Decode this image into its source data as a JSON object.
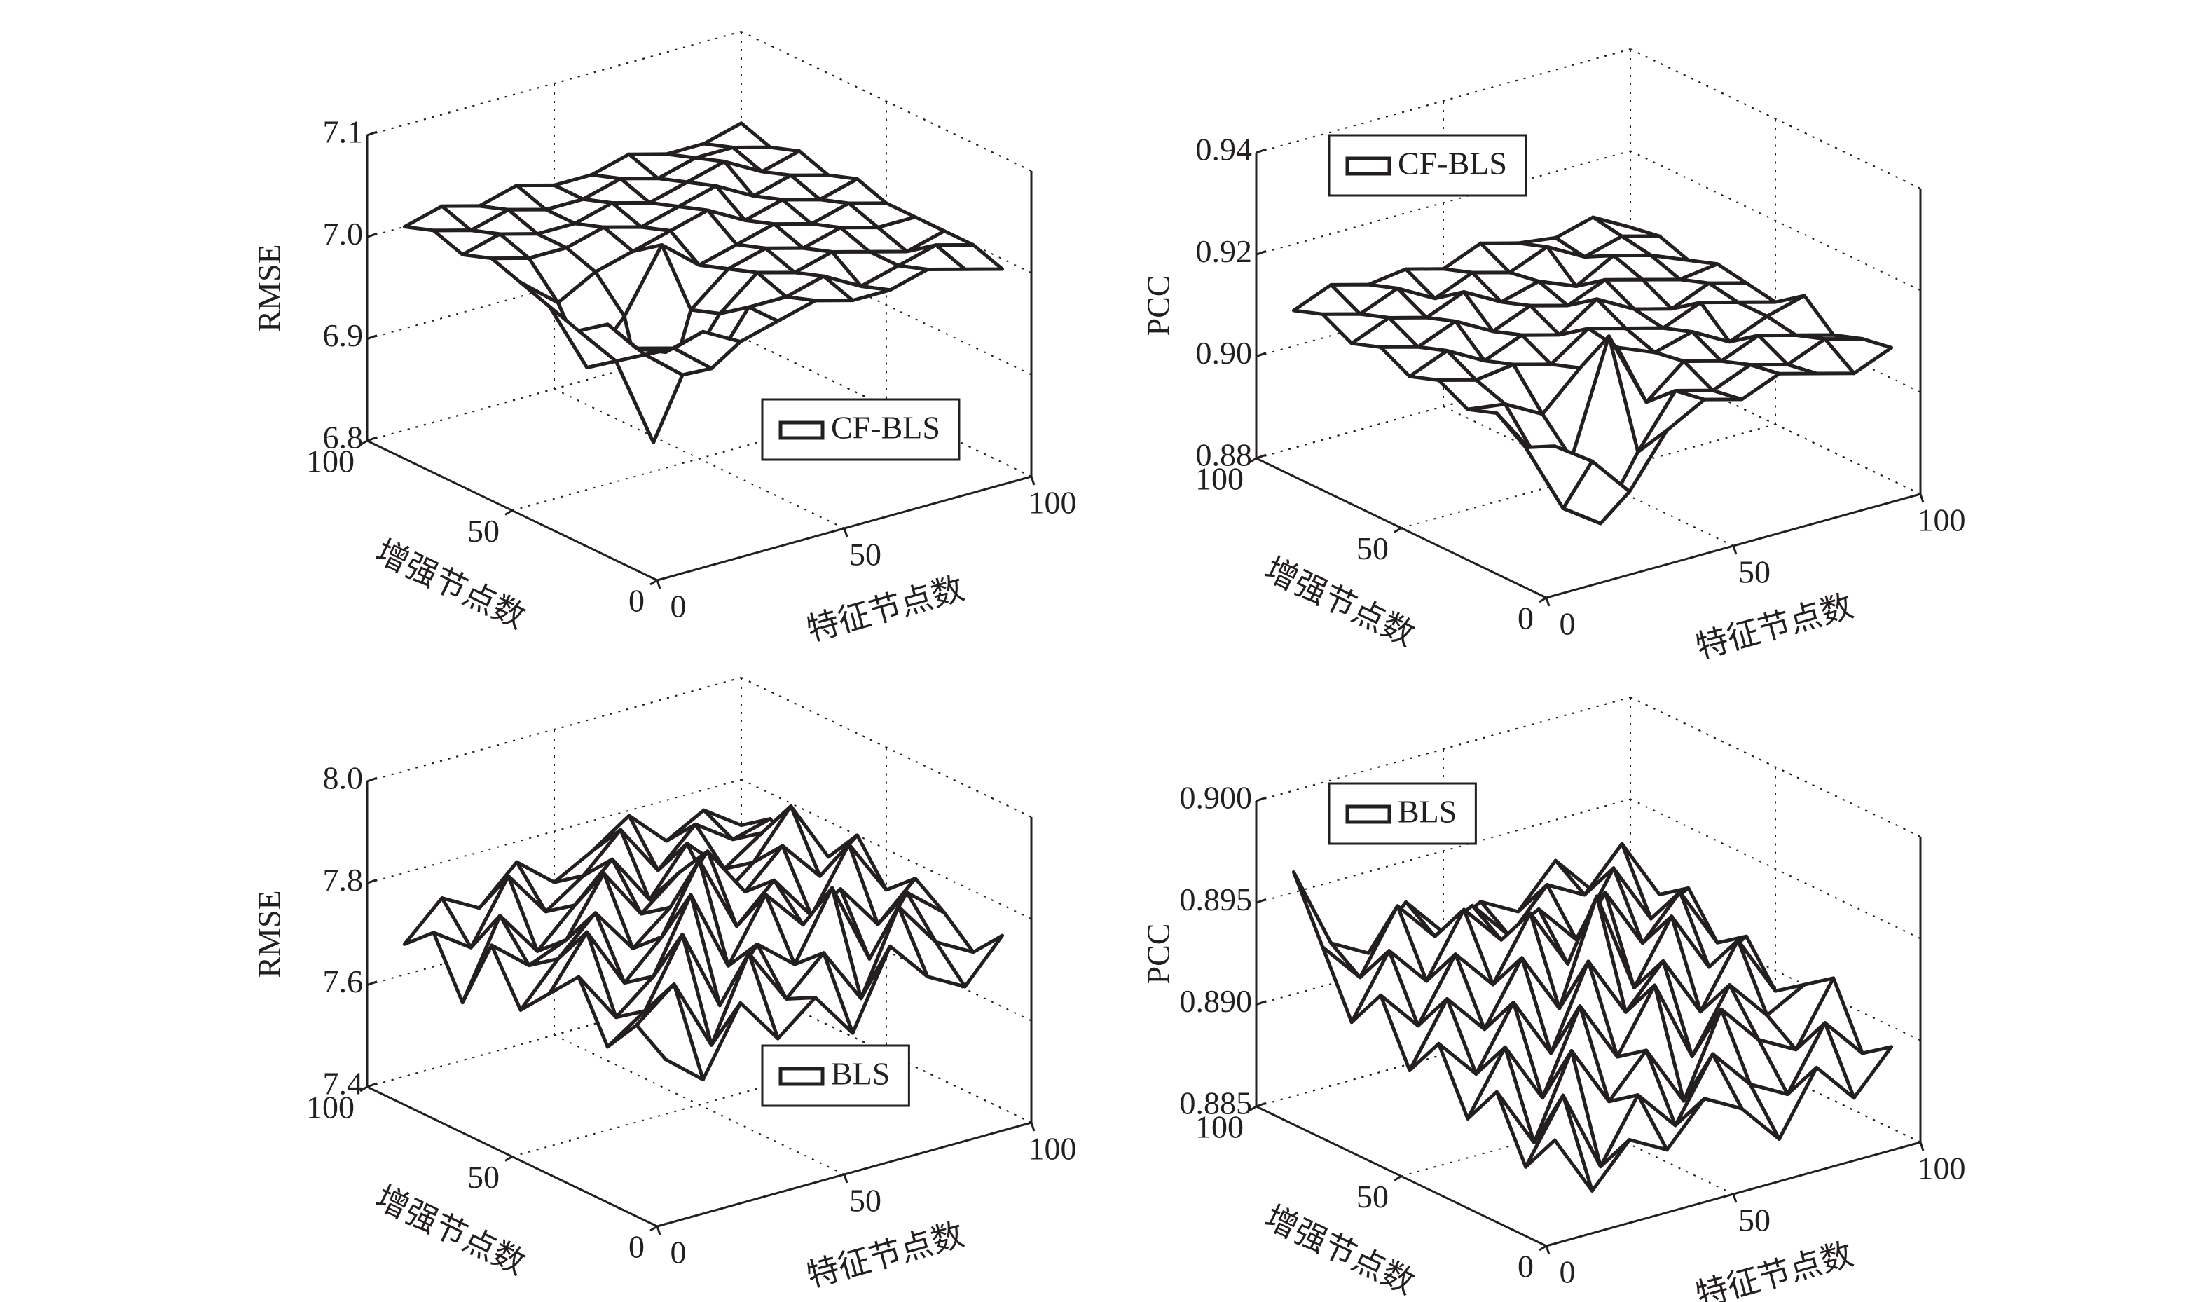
{
  "chart_data": [
    {
      "type": "surface",
      "xlabel": "特征节点数",
      "ylabel": "增强节点数",
      "zlabel": "RMSE",
      "x": [
        10,
        20,
        30,
        40,
        50,
        60,
        70,
        80,
        90,
        100
      ],
      "y": [
        10,
        20,
        30,
        40,
        50,
        60,
        70,
        80,
        90,
        100
      ],
      "xlim": [
        0,
        100
      ],
      "ylim": [
        0,
        100
      ],
      "zlim": [
        6.8,
        7.1
      ],
      "xticks": [
        0,
        50,
        100
      ],
      "yticks": [
        0,
        50,
        100
      ],
      "zticks": [
        6.8,
        6.9,
        {
          "value": 7,
          "label": "7.0"
        },
        7.1
      ],
      "grid": true,
      "legend": "lower right",
      "fill": "#ffffff",
      "series": [
        {
          "name": "CF-BLS",
          "color": "#231f20",
          "z": [
            [
              7.0,
              7.01,
              6.99,
              7.0,
              7.01,
              7.0,
              7.0,
              7.01,
              7.0,
              6.99
            ],
            [
              6.99,
              6.98,
              6.95,
              7.0,
              7.0,
              7.01,
              6.99,
              7.0,
              7.01,
              7.0
            ],
            [
              7.0,
              6.96,
              6.93,
              6.98,
              7.01,
              7.0,
              7.01,
              7.0,
              6.99,
              7.0
            ],
            [
              6.98,
              6.94,
              6.85,
              6.97,
              7.0,
              7.01,
              7.0,
              7.01,
              7.0,
              7.0
            ],
            [
              6.99,
              6.92,
              6.96,
              7.02,
              6.99,
              7.0,
              7.01,
              7.0,
              7.01,
              7.0
            ],
            [
              7.0,
              6.97,
              6.99,
              7.0,
              7.01,
              7.02,
              7.0,
              7.01,
              7.0,
              7.01
            ],
            [
              7.01,
              7.0,
              7.0,
              7.01,
              7.0,
              7.01,
              7.02,
              7.0,
              7.01,
              7.0
            ],
            [
              7.0,
              7.01,
              7.0,
              7.0,
              7.01,
              7.0,
              7.01,
              7.02,
              7.0,
              7.01
            ],
            [
              7.01,
              7.0,
              7.01,
              7.0,
              7.0,
              7.01,
              7.0,
              7.01,
              7.01,
              7.0
            ],
            [
              7.0,
              7.01,
              7.0,
              7.01,
              7.0,
              7.0,
              7.01,
              7.0,
              7.0,
              7.01
            ]
          ]
        }
      ]
    },
    {
      "type": "surface",
      "xlabel": "特征节点数",
      "ylabel": "增强节点数",
      "zlabel": "PCC",
      "x": [
        10,
        20,
        30,
        40,
        50,
        60,
        70,
        80,
        90,
        100
      ],
      "y": [
        10,
        20,
        30,
        40,
        50,
        60,
        70,
        80,
        90,
        100
      ],
      "xlim": [
        0,
        100
      ],
      "ylim": [
        0,
        100
      ],
      "zlim": [
        0.88,
        0.94
      ],
      "xticks": [
        0,
        50,
        100
      ],
      "yticks": [
        0,
        50,
        100
      ],
      "zticks": [
        0.88,
        {
          "value": 0.9,
          "label": "0.90"
        },
        0.92,
        0.94
      ],
      "grid": true,
      "legend": "upper left",
      "fill": "#ffffff",
      "series": [
        {
          "name": "CF-BLS",
          "color": "#231f20",
          "z": [
            [
              0.905,
              0.9,
              0.892,
              0.902,
              0.906,
              0.904,
              0.907,
              0.905,
              0.903,
              0.906
            ],
            [
              0.902,
              0.888,
              0.883,
              0.895,
              0.905,
              0.903,
              0.906,
              0.904,
              0.907,
              0.905
            ],
            [
              0.906,
              0.896,
              0.893,
              0.915,
              0.9,
              0.906,
              0.904,
              0.907,
              0.905,
              0.903
            ],
            [
              0.904,
              0.903,
              0.899,
              0.906,
              0.908,
              0.905,
              0.907,
              0.903,
              0.906,
              0.908
            ],
            [
              0.907,
              0.905,
              0.906,
              0.904,
              0.909,
              0.907,
              0.905,
              0.908,
              0.906,
              0.904
            ],
            [
              0.905,
              0.908,
              0.904,
              0.907,
              0.905,
              0.91,
              0.906,
              0.904,
              0.907,
              0.905
            ],
            [
              0.908,
              0.906,
              0.909,
              0.905,
              0.908,
              0.906,
              0.909,
              0.907,
              0.905,
              0.906
            ],
            [
              0.906,
              0.909,
              0.907,
              0.91,
              0.906,
              0.908,
              0.905,
              0.909,
              0.907,
              0.904
            ],
            [
              0.909,
              0.907,
              0.91,
              0.906,
              0.909,
              0.907,
              0.91,
              0.906,
              0.908,
              0.906
            ],
            [
              0.907,
              0.91,
              0.908,
              0.909,
              0.907,
              0.91,
              0.908,
              0.907,
              0.909,
              0.905
            ]
          ]
        }
      ]
    },
    {
      "type": "surface",
      "xlabel": "特征节点数",
      "ylabel": "增强节点数",
      "zlabel": "RMSE",
      "x": [
        10,
        20,
        30,
        40,
        50,
        60,
        70,
        80,
        90,
        100
      ],
      "y": [
        10,
        20,
        30,
        40,
        50,
        60,
        70,
        80,
        90,
        100
      ],
      "xlim": [
        0,
        100
      ],
      "ylim": [
        0,
        100
      ],
      "zlim": [
        7.4,
        8.0
      ],
      "xticks": [
        0,
        50,
        100
      ],
      "yticks": [
        0,
        50,
        100
      ],
      "zticks": [
        7.4,
        7.6,
        7.8,
        {
          "value": 8,
          "label": "8.0"
        }
      ],
      "grid": true,
      "legend": "lower right",
      "fill": "#ffffff",
      "series": [
        {
          "name": "BLS",
          "color": "#231f20",
          "z": [
            [
              7.68,
              7.62,
              7.75,
              7.66,
              7.72,
              7.63,
              7.78,
              7.7,
              7.66,
              7.74
            ],
            [
              7.72,
              7.78,
              7.64,
              7.8,
              7.69,
              7.76,
              7.65,
              7.81,
              7.72,
              7.68
            ],
            [
              7.65,
              7.7,
              7.83,
              7.67,
              7.77,
              7.71,
              7.84,
              7.68,
              7.79,
              7.73
            ],
            [
              7.76,
              7.66,
              7.72,
              7.86,
              7.7,
              7.82,
              7.74,
              7.79,
              7.7,
              7.77
            ],
            [
              7.7,
              7.8,
              7.68,
              7.75,
              7.88,
              7.73,
              7.8,
              7.71,
              7.83,
              7.72
            ],
            [
              7.64,
              7.72,
              7.79,
              7.7,
              7.76,
              7.85,
              7.75,
              7.82,
              7.74,
              7.8
            ],
            [
              7.74,
              7.68,
              7.71,
              7.82,
              7.72,
              7.78,
              7.7,
              7.76,
              7.85,
              7.73
            ],
            [
              7.6,
              7.75,
              7.66,
              7.73,
              7.8,
              7.7,
              7.79,
              7.72,
              7.77,
              7.7
            ],
            [
              7.71,
              7.66,
              7.78,
              7.69,
              7.74,
              7.81,
              7.71,
              7.78,
              7.73,
              7.75
            ],
            [
              7.66,
              7.73,
              7.69,
              7.76,
              7.7,
              7.74,
              7.79,
              7.72,
              7.76,
              7.71
            ]
          ]
        }
      ]
    },
    {
      "type": "surface",
      "xlabel": "特征节点数",
      "ylabel": "增强节点数",
      "zlabel": "PCC",
      "x": [
        10,
        20,
        30,
        40,
        50,
        60,
        70,
        80,
        90,
        100
      ],
      "y": [
        10,
        20,
        30,
        40,
        50,
        60,
        70,
        80,
        90,
        100
      ],
      "xlim": [
        0,
        100
      ],
      "ylim": [
        0,
        100
      ],
      "zlim": [
        0.885,
        0.9
      ],
      "xticks": [
        0,
        50,
        100
      ],
      "yticks": [
        0,
        50,
        100
      ],
      "zticks": [
        0.885,
        {
          "value": 0.89,
          "label": "0.890"
        },
        0.895,
        {
          "value": 0.9,
          "label": "0.900"
        }
      ],
      "grid": true,
      "legend": "upper left",
      "fill": "#ffffff",
      "series": [
        {
          "name": "BLS",
          "color": "#231f20",
          "z": [
            [
              0.889,
              0.886,
              0.888,
              0.887,
              0.889,
              0.888,
              0.886,
              0.889,
              0.887,
              0.889
            ],
            [
              0.887,
              0.89,
              0.886,
              0.889,
              0.887,
              0.89,
              0.888,
              0.887,
              0.89,
              0.888
            ],
            [
              0.89,
              0.887,
              0.891,
              0.888,
              0.89,
              0.887,
              0.891,
              0.889,
              0.888,
              0.891
            ],
            [
              0.888,
              0.891,
              0.888,
              0.892,
              0.889,
              0.892,
              0.888,
              0.891,
              0.889,
              0.89
            ],
            [
              0.891,
              0.889,
              0.892,
              0.889,
              0.893,
              0.89,
              0.892,
              0.889,
              0.892,
              0.889
            ],
            [
              0.889,
              0.892,
              0.89,
              0.893,
              0.89,
              0.895,
              0.89,
              0.893,
              0.89,
              0.891
            ],
            [
              0.892,
              0.89,
              0.893,
              0.891,
              0.894,
              0.891,
              0.894,
              0.891,
              0.893,
              0.89
            ],
            [
              0.89,
              0.893,
              0.891,
              0.894,
              0.892,
              0.893,
              0.891,
              0.894,
              0.891,
              0.892
            ],
            [
              0.893,
              0.891,
              0.894,
              0.892,
              0.893,
              0.891,
              0.893,
              0.892,
              0.894,
              0.891
            ],
            [
              0.896,
              0.892,
              0.891,
              0.893,
              0.891,
              0.892,
              0.891,
              0.893,
              0.891,
              0.892
            ]
          ]
        }
      ]
    }
  ]
}
